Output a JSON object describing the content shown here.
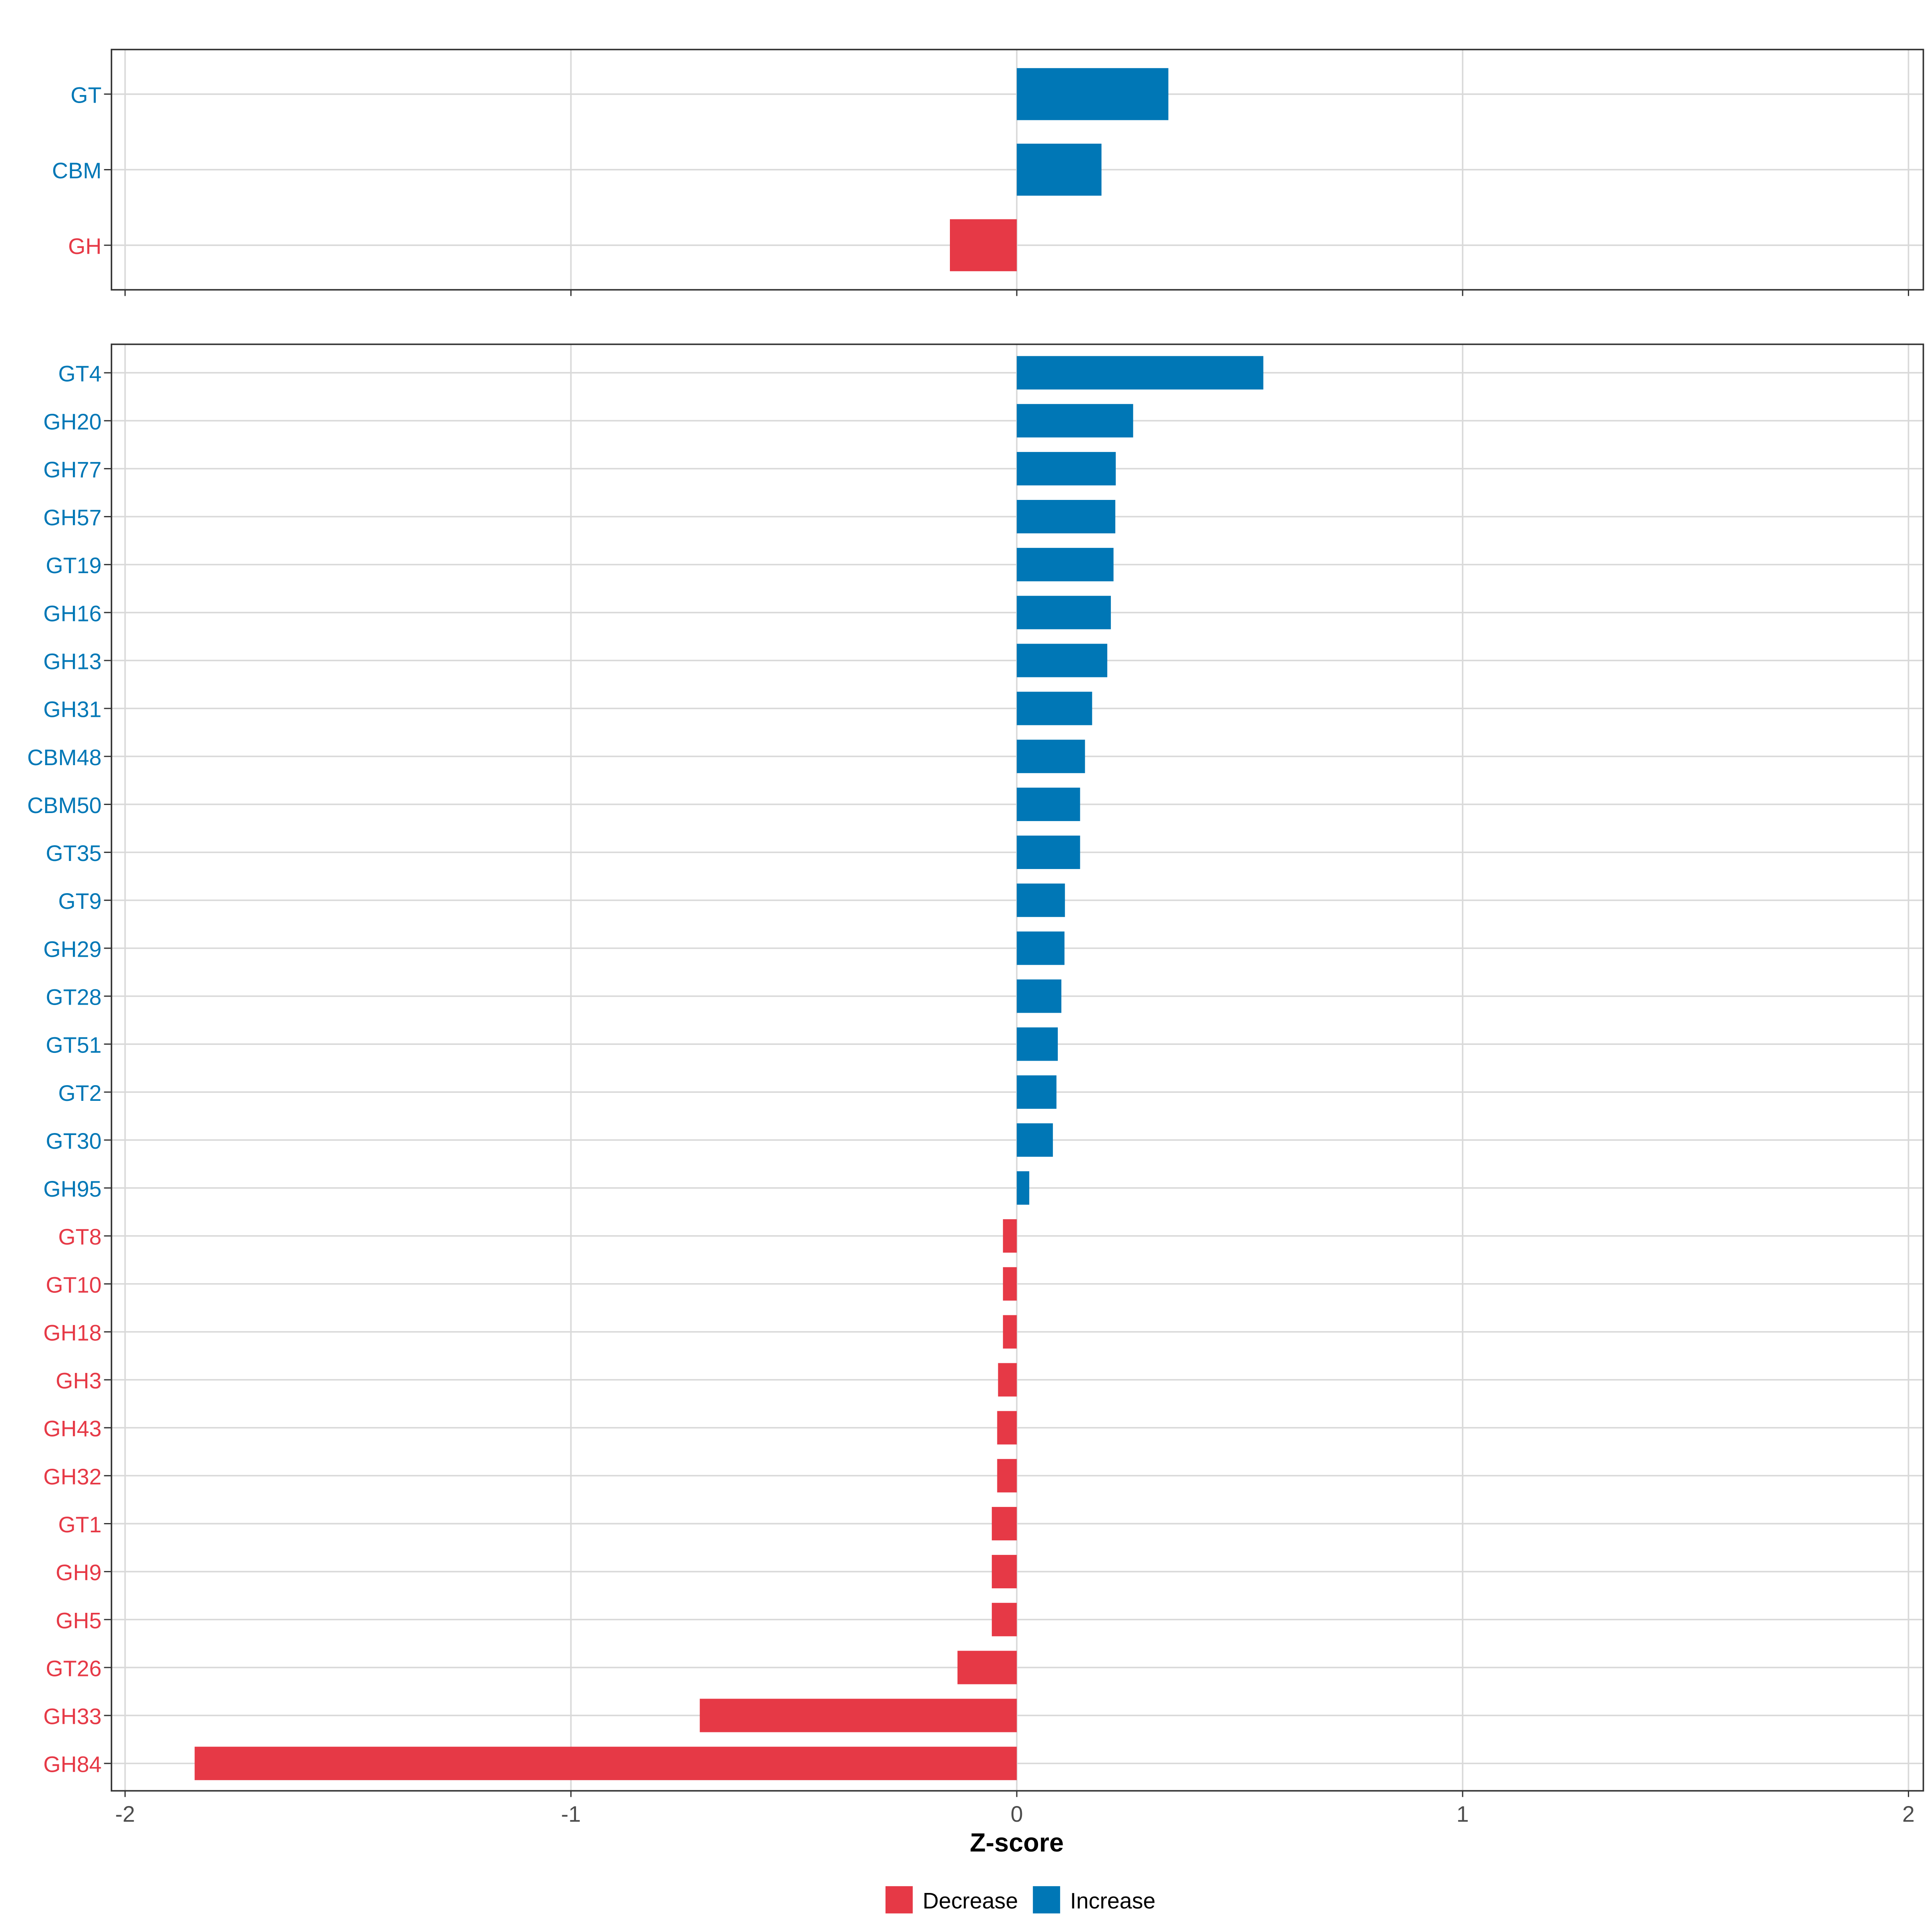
{
  "chart_data": {
    "type": "bar",
    "orientation": "horizontal",
    "xlabel": "Z-score",
    "xlim": [
      -2,
      2
    ],
    "xticks": [
      -2,
      -1,
      0,
      1,
      2
    ],
    "xtick_labels": [
      "-2",
      "-1",
      "0",
      "1",
      "2"
    ],
    "grid": true,
    "colors": {
      "Decrease": "#E63946",
      "Increase": "#0077B6"
    },
    "legend": {
      "position": "bottom",
      "entries": [
        "Decrease",
        "Increase"
      ]
    },
    "panels": [
      {
        "categories": [
          "GT",
          "CBM",
          "GH"
        ],
        "values": [
          0.34,
          0.19,
          -0.15
        ]
      },
      {
        "categories": [
          "GT4",
          "GH20",
          "GH77",
          "GH57",
          "GT19",
          "GH16",
          "GH13",
          "GH31",
          "CBM48",
          "CBM50",
          "GT35",
          "GT9",
          "GH29",
          "GT28",
          "GT51",
          "GT2",
          "GT30",
          "GH95",
          "GT8",
          "GT10",
          "GH18",
          "GH3",
          "GH43",
          "GH32",
          "GT1",
          "GH9",
          "GH5",
          "GT26",
          "GH33",
          "GH84"
        ],
        "values": [
          0.553,
          0.261,
          0.222,
          0.221,
          0.217,
          0.211,
          0.203,
          0.169,
          0.153,
          0.142,
          0.142,
          0.108,
          0.107,
          0.1,
          0.092,
          0.089,
          0.081,
          0.028,
          -0.031,
          -0.031,
          -0.031,
          -0.042,
          -0.044,
          -0.044,
          -0.056,
          -0.056,
          -0.056,
          -0.133,
          -0.711,
          -1.844
        ]
      }
    ]
  }
}
